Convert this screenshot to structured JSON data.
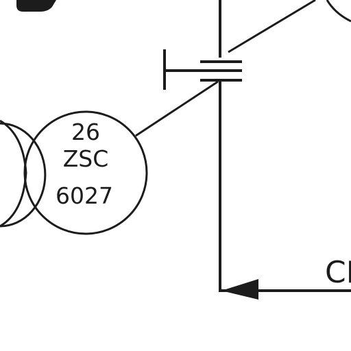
{
  "diagram": {
    "instrument_bubble": {
      "tag_number": "26",
      "function_code": "ZSC",
      "loop_number": "6027"
    },
    "flow_label_partial": "CF"
  },
  "colors": {
    "ink": "#1c1c1c",
    "background": "#ffffff"
  }
}
